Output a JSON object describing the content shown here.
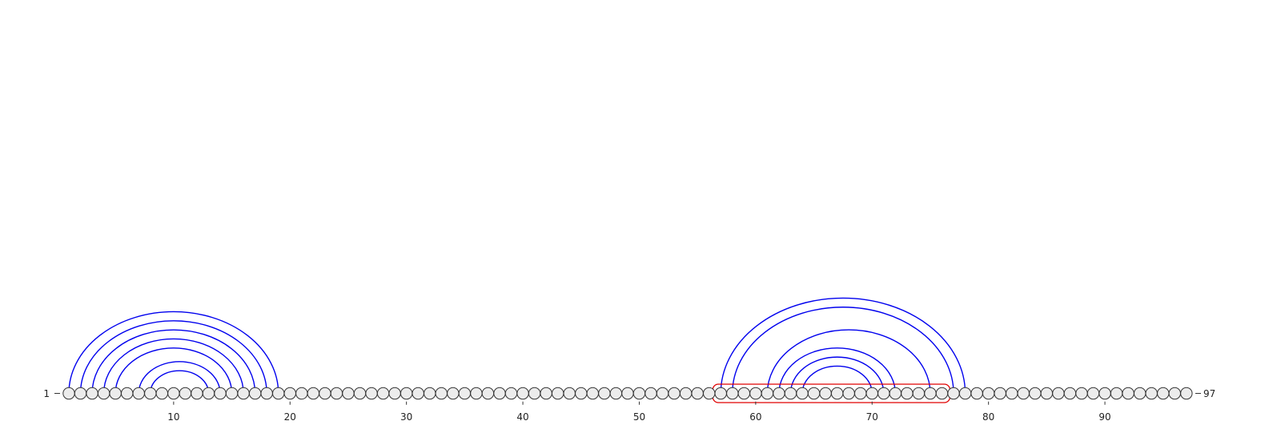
{
  "chart_data": {
    "type": "arc-diagram",
    "sequence_length": 97,
    "start_label": "1",
    "end_label": "97",
    "x_ticks": [
      10,
      20,
      30,
      40,
      50,
      60,
      70,
      80,
      90
    ],
    "x_tick_labels": [
      "10",
      "20",
      "30",
      "40",
      "50",
      "60",
      "70",
      "80",
      "90"
    ],
    "arcs": [
      {
        "from": 1,
        "to": 19
      },
      {
        "from": 2,
        "to": 18
      },
      {
        "from": 3,
        "to": 17
      },
      {
        "from": 4,
        "to": 16
      },
      {
        "from": 5,
        "to": 15
      },
      {
        "from": 7,
        "to": 14
      },
      {
        "from": 8,
        "to": 13
      },
      {
        "from": 57,
        "to": 78
      },
      {
        "from": 58,
        "to": 77
      },
      {
        "from": 61,
        "to": 75
      },
      {
        "from": 62,
        "to": 72
      },
      {
        "from": 63,
        "to": 71
      },
      {
        "from": 64,
        "to": 70
      }
    ],
    "highlighted_region": {
      "from": 57,
      "to": 76
    },
    "colors": {
      "arc": "#0000ee",
      "node_fill": "#ececec",
      "node_stroke": "#333333",
      "highlight": "#e00000"
    }
  }
}
